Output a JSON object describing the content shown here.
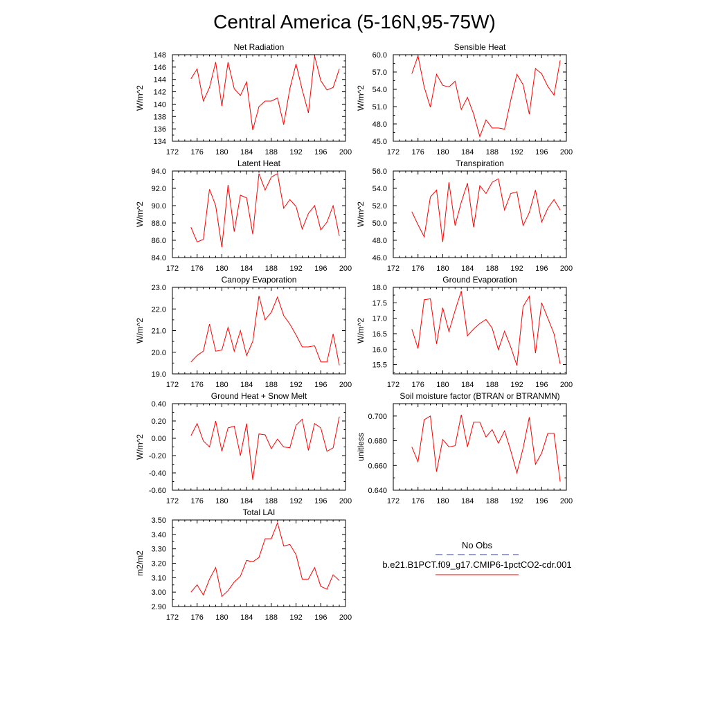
{
  "figure": {
    "title": "Central America (5-16N,95-75W)"
  },
  "legend": {
    "obs_label": "No Obs",
    "obs_color": "#3a3aa8",
    "model_label": "b.e21.B1PCT.f09_g17.CMIP6-1pctCO2-cdr.001",
    "model_color": "#ff0000"
  },
  "chart_data": [
    {
      "type": "line",
      "title": "Net Radiation",
      "ylabel": "W/m^2",
      "xlim": [
        172,
        200
      ],
      "xticks": [
        172,
        176,
        180,
        184,
        188,
        192,
        196,
        200
      ],
      "ylim": [
        134,
        148
      ],
      "yticks": [
        134,
        136,
        138,
        140,
        142,
        144,
        146,
        148
      ],
      "ytick_labels": [
        "134",
        "136",
        "138",
        "140",
        "142",
        "144",
        "146",
        "148"
      ],
      "x": [
        175,
        176,
        177,
        178,
        179,
        180,
        181,
        182,
        183,
        184,
        185,
        186,
        187,
        188,
        189,
        190,
        191,
        192,
        193,
        194,
        195,
        196,
        197,
        198,
        199
      ],
      "series": [
        {
          "values": [
            144.1,
            145.7,
            140.5,
            142.7,
            146.8,
            139.7,
            146.8,
            142.5,
            141.4,
            143.6,
            135.8,
            139.6,
            140.5,
            140.5,
            141.0,
            136.7,
            142.5,
            146.5,
            142.3,
            138.6,
            147.8,
            143.8,
            142.3,
            142.7,
            145.7
          ]
        }
      ]
    },
    {
      "type": "line",
      "title": "Sensible Heat",
      "ylabel": "W/m^2",
      "xlim": [
        172,
        200
      ],
      "xticks": [
        172,
        176,
        180,
        184,
        188,
        192,
        196,
        200
      ],
      "ylim": [
        45,
        60
      ],
      "yticks": [
        45,
        48,
        51,
        54,
        57,
        60
      ],
      "ytick_labels": [
        "45.0",
        "48.0",
        "51.0",
        "54.0",
        "57.0",
        "60.0"
      ],
      "x": [
        175,
        176,
        177,
        178,
        179,
        180,
        181,
        182,
        183,
        184,
        185,
        186,
        187,
        188,
        189,
        190,
        191,
        192,
        193,
        194,
        195,
        196,
        197,
        198,
        199
      ],
      "series": [
        {
          "values": [
            56.7,
            59.8,
            54.4,
            50.9,
            56.6,
            54.7,
            54.4,
            55.4,
            50.5,
            52.6,
            49.7,
            45.8,
            48.7,
            47.3,
            47.3,
            47.1,
            52.1,
            56.6,
            54.8,
            49.7,
            57.6,
            56.7,
            54.5,
            53.0,
            59.0
          ]
        }
      ]
    },
    {
      "type": "line",
      "title": "Latent Heat",
      "ylabel": "W/m^2",
      "xlim": [
        172,
        200
      ],
      "xticks": [
        172,
        176,
        180,
        184,
        188,
        192,
        196,
        200
      ],
      "ylim": [
        84,
        94
      ],
      "yticks": [
        84,
        86,
        88,
        90,
        92,
        94
      ],
      "ytick_labels": [
        "84.0",
        "86.0",
        "88.0",
        "90.0",
        "92.0",
        "94.0"
      ],
      "x": [
        175,
        176,
        177,
        178,
        179,
        180,
        181,
        182,
        183,
        184,
        185,
        186,
        187,
        188,
        189,
        190,
        191,
        192,
        193,
        194,
        195,
        196,
        197,
        198,
        199
      ],
      "series": [
        {
          "values": [
            87.5,
            85.8,
            86.1,
            91.9,
            90.0,
            85.2,
            92.4,
            87.0,
            91.2,
            90.9,
            86.7,
            93.7,
            91.8,
            93.3,
            93.7,
            89.7,
            90.7,
            89.9,
            87.3,
            89.1,
            90.0,
            87.2,
            88.1,
            90.0,
            86.5
          ]
        }
      ]
    },
    {
      "type": "line",
      "title": "Transpiration",
      "ylabel": "W/m^2",
      "xlim": [
        172,
        200
      ],
      "xticks": [
        172,
        176,
        180,
        184,
        188,
        192,
        196,
        200
      ],
      "ylim": [
        46,
        56
      ],
      "yticks": [
        46,
        48,
        50,
        52,
        54,
        56
      ],
      "ytick_labels": [
        "46.0",
        "48.0",
        "50.0",
        "52.0",
        "54.0",
        "56.0"
      ],
      "x": [
        175,
        176,
        177,
        178,
        179,
        180,
        181,
        182,
        183,
        184,
        185,
        186,
        187,
        188,
        189,
        190,
        191,
        192,
        193,
        194,
        195,
        196,
        197,
        198,
        199
      ],
      "series": [
        {
          "values": [
            51.3,
            49.8,
            48.4,
            53.0,
            53.8,
            47.8,
            54.7,
            49.7,
            52.4,
            54.6,
            49.5,
            54.3,
            53.4,
            54.7,
            55.1,
            51.5,
            53.4,
            53.6,
            49.7,
            51.2,
            53.8,
            50.1,
            51.7,
            52.7,
            51.5
          ]
        }
      ]
    },
    {
      "type": "line",
      "title": "Canopy Evaporation",
      "ylabel": "W/m^2",
      "xlim": [
        172,
        200
      ],
      "xticks": [
        172,
        176,
        180,
        184,
        188,
        192,
        196,
        200
      ],
      "ylim": [
        19,
        23
      ],
      "yticks": [
        19,
        20,
        21,
        22,
        23
      ],
      "ytick_labels": [
        "19.0",
        "20.0",
        "21.0",
        "22.0",
        "23.0"
      ],
      "x": [
        175,
        176,
        177,
        178,
        179,
        180,
        181,
        182,
        183,
        184,
        185,
        186,
        187,
        188,
        189,
        190,
        191,
        192,
        193,
        194,
        195,
        196,
        197,
        198,
        199
      ],
      "series": [
        {
          "values": [
            19.55,
            19.85,
            20.05,
            21.3,
            20.05,
            20.1,
            21.15,
            20.05,
            21.0,
            19.85,
            20.5,
            22.6,
            21.5,
            21.85,
            22.55,
            21.7,
            21.3,
            20.8,
            20.25,
            20.25,
            20.3,
            19.55,
            19.55,
            20.85,
            19.4
          ]
        }
      ]
    },
    {
      "type": "line",
      "title": "Ground Evaporation",
      "ylabel": "W/m^2",
      "xlim": [
        172,
        200
      ],
      "xticks": [
        172,
        176,
        180,
        184,
        188,
        192,
        196,
        200
      ],
      "ylim": [
        15.2,
        18.0
      ],
      "yticks": [
        15.5,
        16.0,
        16.5,
        17.0,
        17.5,
        18.0
      ],
      "ytick_labels": [
        "15.5",
        "16.0",
        "16.5",
        "17.0",
        "17.5",
        "18.0"
      ],
      "x": [
        175,
        176,
        177,
        178,
        179,
        180,
        181,
        182,
        183,
        184,
        185,
        186,
        187,
        188,
        189,
        190,
        191,
        192,
        193,
        194,
        195,
        196,
        197,
        198,
        199
      ],
      "series": [
        {
          "values": [
            16.65,
            16.02,
            17.6,
            17.63,
            16.17,
            17.34,
            16.57,
            17.25,
            17.88,
            16.43,
            16.65,
            16.83,
            16.96,
            16.68,
            15.98,
            16.58,
            16.07,
            15.47,
            17.38,
            17.71,
            15.87,
            17.5,
            17.0,
            16.5,
            15.52
          ]
        }
      ]
    },
    {
      "type": "line",
      "title": "Ground Heat + Snow Melt",
      "ylabel": "W/m^2",
      "xlim": [
        172,
        200
      ],
      "xticks": [
        172,
        176,
        180,
        184,
        188,
        192,
        196,
        200
      ],
      "ylim": [
        -0.6,
        0.4
      ],
      "yticks": [
        -0.6,
        -0.4,
        -0.2,
        0.0,
        0.2,
        0.4
      ],
      "ytick_labels": [
        "-0.60",
        "-0.40",
        "-0.20",
        "0.00",
        "0.20",
        "0.40"
      ],
      "x": [
        175,
        176,
        177,
        178,
        179,
        180,
        181,
        182,
        183,
        184,
        185,
        186,
        187,
        188,
        189,
        190,
        191,
        192,
        193,
        194,
        195,
        196,
        197,
        198,
        199
      ],
      "series": [
        {
          "values": [
            0.03,
            0.17,
            -0.03,
            -0.1,
            0.2,
            -0.15,
            0.12,
            0.14,
            -0.2,
            0.17,
            -0.48,
            0.05,
            0.04,
            -0.12,
            -0.01,
            -0.1,
            -0.11,
            0.15,
            0.22,
            -0.14,
            0.17,
            0.12,
            -0.15,
            -0.11,
            0.25
          ]
        }
      ]
    },
    {
      "type": "line",
      "title": "Soil moisture factor (BTRAN or BTRANMN)",
      "ylabel": "unitless",
      "xlim": [
        172,
        200
      ],
      "xticks": [
        172,
        176,
        180,
        184,
        188,
        192,
        196,
        200
      ],
      "ylim": [
        0.64,
        0.71
      ],
      "yticks": [
        0.64,
        0.66,
        0.68,
        0.7
      ],
      "ytick_labels": [
        "0.640",
        "0.660",
        "0.680",
        "0.700"
      ],
      "x": [
        175,
        176,
        177,
        178,
        179,
        180,
        181,
        182,
        183,
        184,
        185,
        186,
        187,
        188,
        189,
        190,
        191,
        192,
        193,
        194,
        195,
        196,
        197,
        198,
        199
      ],
      "series": [
        {
          "values": [
            0.675,
            0.663,
            0.697,
            0.7,
            0.655,
            0.681,
            0.675,
            0.676,
            0.701,
            0.675,
            0.695,
            0.695,
            0.683,
            0.689,
            0.678,
            0.688,
            0.672,
            0.654,
            0.674,
            0.699,
            0.661,
            0.67,
            0.686,
            0.686,
            0.647
          ]
        }
      ]
    },
    {
      "type": "line",
      "title": "Total LAI",
      "ylabel": "m2/m2",
      "xlim": [
        172,
        200
      ],
      "xticks": [
        172,
        176,
        180,
        184,
        188,
        192,
        196,
        200
      ],
      "ylim": [
        2.9,
        3.5
      ],
      "yticks": [
        2.9,
        3.0,
        3.1,
        3.2,
        3.3,
        3.4,
        3.5
      ],
      "ytick_labels": [
        "2.90",
        "3.00",
        "3.10",
        "3.20",
        "3.30",
        "3.40",
        "3.50"
      ],
      "x": [
        175,
        176,
        177,
        178,
        179,
        180,
        181,
        182,
        183,
        184,
        185,
        186,
        187,
        188,
        189,
        190,
        191,
        192,
        193,
        194,
        195,
        196,
        197,
        198,
        199
      ],
      "series": [
        {
          "values": [
            3.0,
            3.05,
            2.98,
            3.09,
            3.17,
            2.97,
            3.01,
            3.07,
            3.11,
            3.22,
            3.21,
            3.24,
            3.37,
            3.37,
            3.48,
            3.32,
            3.33,
            3.26,
            3.09,
            3.09,
            3.17,
            3.04,
            3.02,
            3.12,
            3.08
          ]
        }
      ]
    }
  ]
}
